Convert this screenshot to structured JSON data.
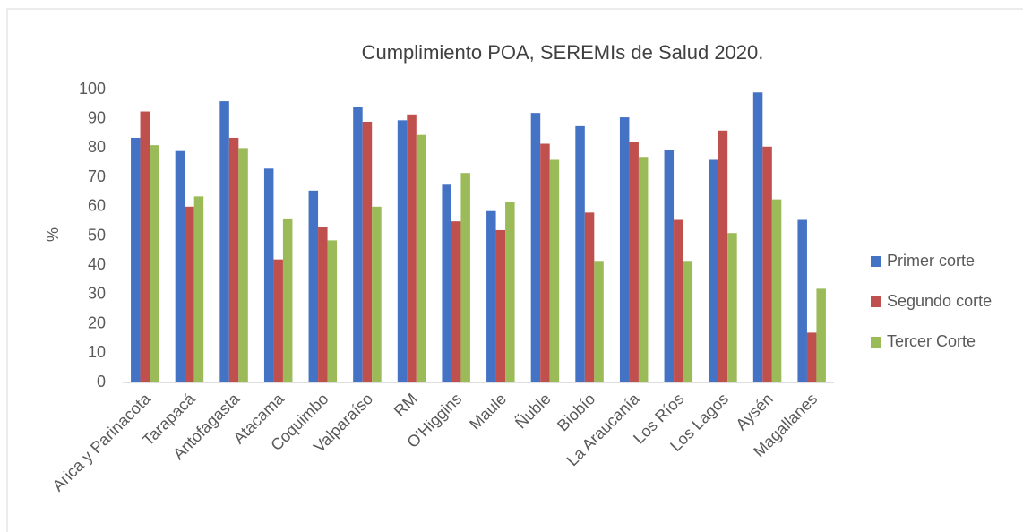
{
  "chart_data": {
    "type": "bar",
    "title": "Cumplimiento POA, SEREMIs de Salud 2020.",
    "y_label": "%",
    "categories": [
      "Arica y Parinacota",
      "Tarapacá",
      "Antofagasta",
      "Atacama",
      "Coquimbo",
      "Valparaíso",
      "RM",
      "O'Higgins",
      "Maule",
      "Ñuble",
      "Biobío",
      "La Araucanía",
      "Los Ríos",
      "Los Lagos",
      "Aysén",
      "Magallanes"
    ],
    "series": [
      {
        "name": "Primer corte",
        "color": "#4472c4",
        "values": [
          83.5,
          79,
          96,
          73,
          65.5,
          94,
          89.5,
          67.5,
          58.5,
          92,
          87.5,
          90.5,
          79.5,
          76,
          99,
          55.5
        ]
      },
      {
        "name": "Segundo corte",
        "color": "#c0504d",
        "values": [
          92.5,
          60,
          83.5,
          42,
          53,
          89,
          91.5,
          55,
          52,
          81.5,
          58,
          82,
          55.5,
          86,
          80.5,
          17
        ]
      },
      {
        "name": "Tercer Corte",
        "color": "#9bbb59",
        "values": [
          81,
          63.5,
          80,
          56,
          48.5,
          60,
          84.5,
          71.5,
          61.5,
          76,
          41.5,
          77,
          41.5,
          51,
          62.5,
          32
        ]
      }
    ],
    "ylim": [
      0,
      100
    ],
    "yticks": [
      0,
      10,
      20,
      30,
      40,
      50,
      60,
      70,
      80,
      90,
      100
    ],
    "grid": false,
    "legend": "right"
  }
}
